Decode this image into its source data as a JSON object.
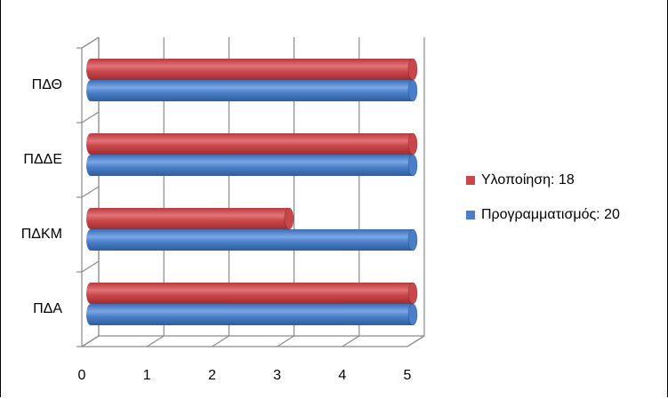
{
  "chart_data": {
    "type": "bar",
    "orientation": "horizontal",
    "style": "3d-cylinder",
    "categories": [
      "ΠΔΑ",
      "ΠΔΚΜ",
      "ΠΔΔΕ",
      "ΠΔΘ"
    ],
    "series": [
      {
        "name": "Προγραμματισμός: 20",
        "color": "#4a7fc8",
        "values": [
          5,
          5,
          5,
          5
        ]
      },
      {
        "name": "Υλοποίηση: 18",
        "color": "#c9474a",
        "values": [
          5,
          3.1,
          5,
          5
        ]
      }
    ],
    "xlim": [
      0,
      5
    ],
    "x_ticks": [
      "0",
      "1",
      "2",
      "3",
      "4",
      "5"
    ],
    "grid": true,
    "legend_position": "right"
  }
}
